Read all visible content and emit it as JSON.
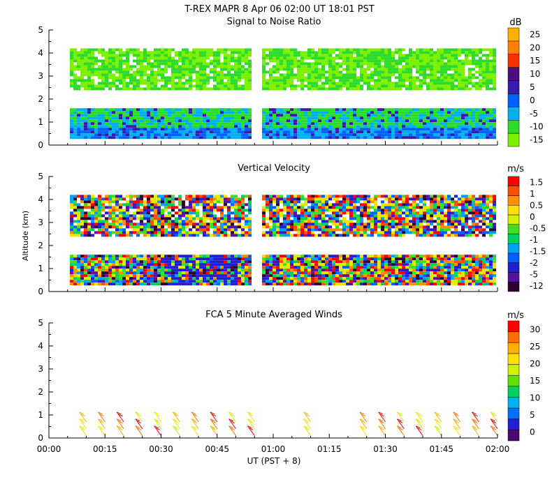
{
  "header": {
    "title": "T-REX  MAPR  8 Apr 06  02:00 UT  18:01  PST"
  },
  "colors": {
    "snr_scale": [
      "#7df000",
      "#2bdc2b",
      "#00b0f0",
      "#0060ff",
      "#3a1aa8",
      "#4a107a",
      "#ff3000",
      "#ff8000",
      "#ffb000"
    ],
    "vv_scale": [
      "#300030",
      "#5a10a0",
      "#2020d0",
      "#0060ff",
      "#00a0ff",
      "#00d060",
      "#40e020",
      "#d8f000",
      "#ffe000",
      "#ff9000",
      "#ff5000",
      "#ff0000"
    ],
    "wind_scale": [
      "#4a0870",
      "#2020d0",
      "#0070ff",
      "#00b0f0",
      "#00d060",
      "#60e000",
      "#d0f000",
      "#ffe000",
      "#ffb000",
      "#ff7000",
      "#ff0000"
    ]
  },
  "chart_data": [
    {
      "type": "heatmap",
      "title": "Signal to Noise Ratio",
      "ylabel": "",
      "xlabel": "",
      "x_range_minutes": [
        0,
        120
      ],
      "ylim": [
        0,
        5
      ],
      "y_ticks": [
        "0",
        "1",
        "2",
        "3",
        "4",
        "5"
      ],
      "colorbar_unit": "dB",
      "colorbar_labels": [
        "-15",
        "-10",
        "-5",
        "0",
        "5",
        "10",
        "15",
        "20",
        "25"
      ],
      "data_gap_minutes": [
        54,
        57
      ],
      "echo_layers_km": [
        [
          0.3,
          1.6
        ],
        [
          2.4,
          4.2
        ]
      ]
    },
    {
      "type": "heatmap",
      "title": "Vertical Velocity",
      "ylabel": "Altitude (km)",
      "xlabel": "",
      "x_range_minutes": [
        0,
        120
      ],
      "ylim": [
        0,
        5
      ],
      "y_ticks": [
        "0",
        "1",
        "2",
        "3",
        "4",
        "5"
      ],
      "colorbar_unit": "m/s",
      "colorbar_labels": [
        "-12",
        "-5",
        "-2",
        "-1.5",
        "-1",
        "-0.5",
        "0",
        "0.5",
        "1",
        "1.5"
      ],
      "data_gap_minutes": [
        54,
        57
      ],
      "echo_layers_km": [
        [
          0.3,
          1.6
        ],
        [
          2.4,
          4.2
        ]
      ]
    },
    {
      "type": "scatter",
      "title": "FCA 5 Minute Averaged Winds",
      "ylabel": "",
      "xlabel": "UT  (PST + 8)",
      "x_range_minutes": [
        0,
        120
      ],
      "ylim": [
        0,
        5
      ],
      "y_ticks": [
        "0",
        "1",
        "2",
        "3",
        "4",
        "5"
      ],
      "x_tick_labels": [
        "00:00",
        "00:15",
        "00:30",
        "00:45",
        "01:00",
        "01:15",
        "01:30",
        "01:45",
        "02:00"
      ],
      "colorbar_unit": "m/s",
      "colorbar_labels": [
        "0",
        "5",
        "10",
        "15",
        "20",
        "25",
        "30"
      ],
      "wind_barb_times_minutes": [
        10,
        15,
        20,
        25,
        30,
        35,
        40,
        45,
        50,
        55,
        70,
        85,
        90,
        95,
        100,
        105,
        110,
        115,
        120
      ]
    }
  ]
}
